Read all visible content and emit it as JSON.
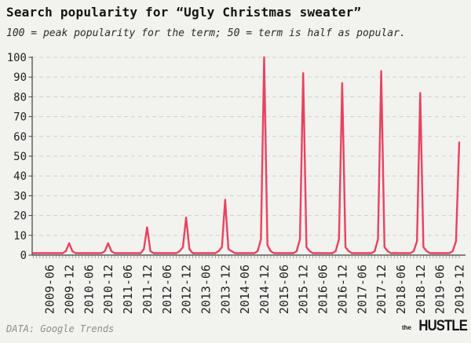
{
  "header": {
    "title": "Search popularity for “Ugly Christmas sweater”",
    "subtitle": "100 = peak popularity for the term; 50 = term is half as popular."
  },
  "footer": {
    "source": "DATA: Google Trends",
    "logo_the": "the",
    "logo_hustle": "HUSTLE"
  },
  "colors": {
    "background": "#f2f2ef",
    "line": "#e8425f",
    "grid": "#d3d3d3",
    "axis": "#3f3f3f",
    "tick": "#8f8f8f",
    "label": "#222222",
    "muted": "#8d8d8d"
  },
  "chart_data": {
    "type": "line",
    "title": "Search popularity for “Ugly Christmas sweater”",
    "subtitle": "100 = peak popularity for the term; 50 = term is half as popular.",
    "source": "DATA: Google Trends",
    "frequency": "monthly",
    "start_month": "2009-01",
    "end_month": "2019-12",
    "values": [
      1,
      1,
      1,
      1,
      1,
      1,
      1,
      1,
      1,
      1,
      2,
      6,
      2,
      1,
      1,
      1,
      1,
      1,
      1,
      1,
      1,
      1,
      2,
      6,
      2,
      1,
      1,
      1,
      1,
      1,
      1,
      1,
      1,
      1,
      3,
      14,
      2,
      1,
      1,
      1,
      1,
      1,
      1,
      1,
      1,
      2,
      4,
      19,
      3,
      1,
      1,
      1,
      1,
      1,
      1,
      1,
      1,
      2,
      4,
      28,
      3,
      2,
      1,
      1,
      1,
      1,
      1,
      1,
      1,
      2,
      8,
      100,
      5,
      2,
      1,
      1,
      1,
      1,
      1,
      1,
      1,
      2,
      8,
      92,
      4,
      2,
      1,
      1,
      1,
      1,
      1,
      1,
      1,
      2,
      8,
      87,
      4,
      2,
      1,
      1,
      1,
      1,
      1,
      1,
      1,
      2,
      8,
      93,
      4,
      2,
      1,
      1,
      1,
      1,
      1,
      1,
      1,
      2,
      7,
      82,
      4,
      2,
      1,
      1,
      1,
      1,
      1,
      1,
      1,
      2,
      7,
      57
    ],
    "annual_december_peaks": {
      "2009": 6,
      "2010": 6,
      "2011": 14,
      "2012": 19,
      "2013": 28,
      "2014": 100,
      "2015": 92,
      "2016": 87,
      "2017": 93,
      "2018": 82,
      "2019": 57
    },
    "x_tick_labels": [
      "2009-06",
      "2009-12",
      "2010-06",
      "2010-12",
      "2011-06",
      "2011-12",
      "2012-06",
      "2012-12",
      "2013-06",
      "2013-12",
      "2014-06",
      "2014-12",
      "2015-06",
      "2015-12",
      "2016-06",
      "2016-12",
      "2017-06",
      "2017-12",
      "2018-06",
      "2018-12",
      "2019-06",
      "2019-12"
    ],
    "x_first_tick_index": 5,
    "x_tick_step": 6,
    "y_ticks": [
      0,
      10,
      20,
      30,
      40,
      50,
      60,
      70,
      80,
      90,
      100
    ],
    "ylim": [
      0,
      100
    ],
    "grid": "dashed-horizontal",
    "legend": "none"
  }
}
